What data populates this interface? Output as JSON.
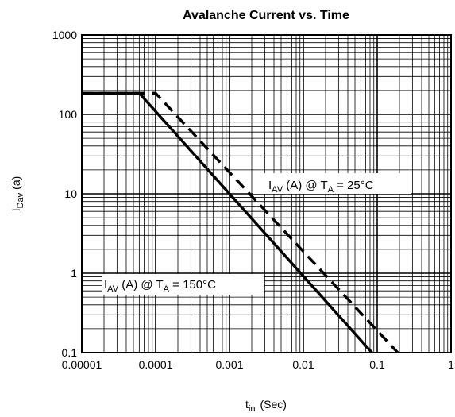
{
  "chart_data": {
    "type": "line",
    "title": "Avalanche Current vs. Time",
    "xlabel": {
      "main": "t",
      "sub": "in",
      "rest": "(Sec)"
    },
    "ylabel": {
      "main": "I",
      "sub": "Dav",
      "rest": "(a)"
    },
    "xscale": "log",
    "yscale": "log",
    "xlim": [
      1e-05,
      1
    ],
    "ylim": [
      0.1,
      1000
    ],
    "x_ticks": [
      {
        "value": 1e-05,
        "label": "0.00001"
      },
      {
        "value": 0.0001,
        "label": "0.0001"
      },
      {
        "value": 0.001,
        "label": "0.001"
      },
      {
        "value": 0.01,
        "label": "0.01"
      },
      {
        "value": 0.1,
        "label": "0.1"
      },
      {
        "value": 1,
        "label": "1"
      }
    ],
    "y_ticks": [
      {
        "value": 0.1,
        "label": "0.1"
      },
      {
        "value": 1,
        "label": "1"
      },
      {
        "value": 10,
        "label": "10"
      },
      {
        "value": 100,
        "label": "100"
      },
      {
        "value": 1000,
        "label": "1000"
      }
    ],
    "grid": true,
    "legend": "none",
    "series": [
      {
        "style": "solid",
        "color": "#000000",
        "points": [
          [
            1e-05,
            185
          ],
          [
            6e-05,
            185
          ],
          [
            0.085,
            0.1
          ]
        ],
        "annotation": {
          "p1": "I",
          "p1_sub": "AV",
          "p2": " (A) @ T",
          "p2_sub": "A",
          "p3": " = 150°C"
        }
      },
      {
        "style": "dashed",
        "color": "#000000",
        "points": [
          [
            1e-05,
            185
          ],
          [
            0.0001,
            185
          ],
          [
            0.19,
            0.1
          ]
        ],
        "annotation": {
          "p1": "I",
          "p1_sub": "AV",
          "p2": " (A) @ T",
          "p2_sub": "A",
          "p3": " = 25°C"
        }
      }
    ]
  }
}
